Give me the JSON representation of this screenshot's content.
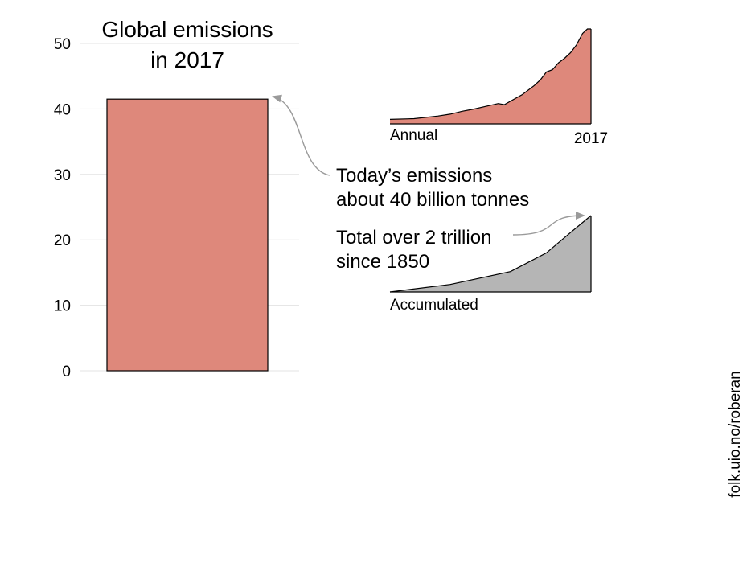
{
  "colors": {
    "bar_fill": "#de887b",
    "annual_fill": "#de887b",
    "accum_fill": "#b5b5b5",
    "grid": "#e3e3e3",
    "arrow": "#9a9a9a"
  },
  "credit": "folk.uio.no/roberan",
  "chart_data": [
    {
      "type": "bar",
      "title_lines": [
        "Global emissions",
        "in 2017"
      ],
      "categories": [
        ""
      ],
      "values": [
        41.5
      ],
      "ylim": [
        0,
        50
      ],
      "yticks": [
        0,
        10,
        20,
        30,
        40,
        50
      ],
      "grid": true,
      "annotations": [
        {
          "lines": [
            "Today’s emissions",
            "about 40 billion tonnes"
          ]
        }
      ]
    },
    {
      "type": "area",
      "label": "Annual",
      "end_label": "2017",
      "x": [
        1850,
        1870,
        1890,
        1900,
        1910,
        1920,
        1930,
        1940,
        1945,
        1950,
        1960,
        1970,
        1975,
        1980,
        1985,
        1990,
        1995,
        2000,
        2005,
        2010,
        2014,
        2017
      ],
      "y": [
        2.0,
        2.3,
        3.5,
        4.3,
        5.6,
        6.6,
        7.8,
        9.0,
        8.5,
        10.0,
        13.0,
        17.0,
        19.5,
        23.0,
        24.0,
        27.0,
        29.0,
        31.5,
        35.0,
        40.0,
        42.0,
        42.0
      ]
    },
    {
      "type": "area",
      "label": "Accumulated",
      "x": [
        1850,
        1900,
        1950,
        1980,
        2000,
        2017
      ],
      "y": [
        0,
        220,
        600,
        1150,
        1750,
        2250
      ],
      "annotations": [
        {
          "lines": [
            "Total over 2 trillion",
            "since 1850"
          ]
        }
      ]
    }
  ]
}
